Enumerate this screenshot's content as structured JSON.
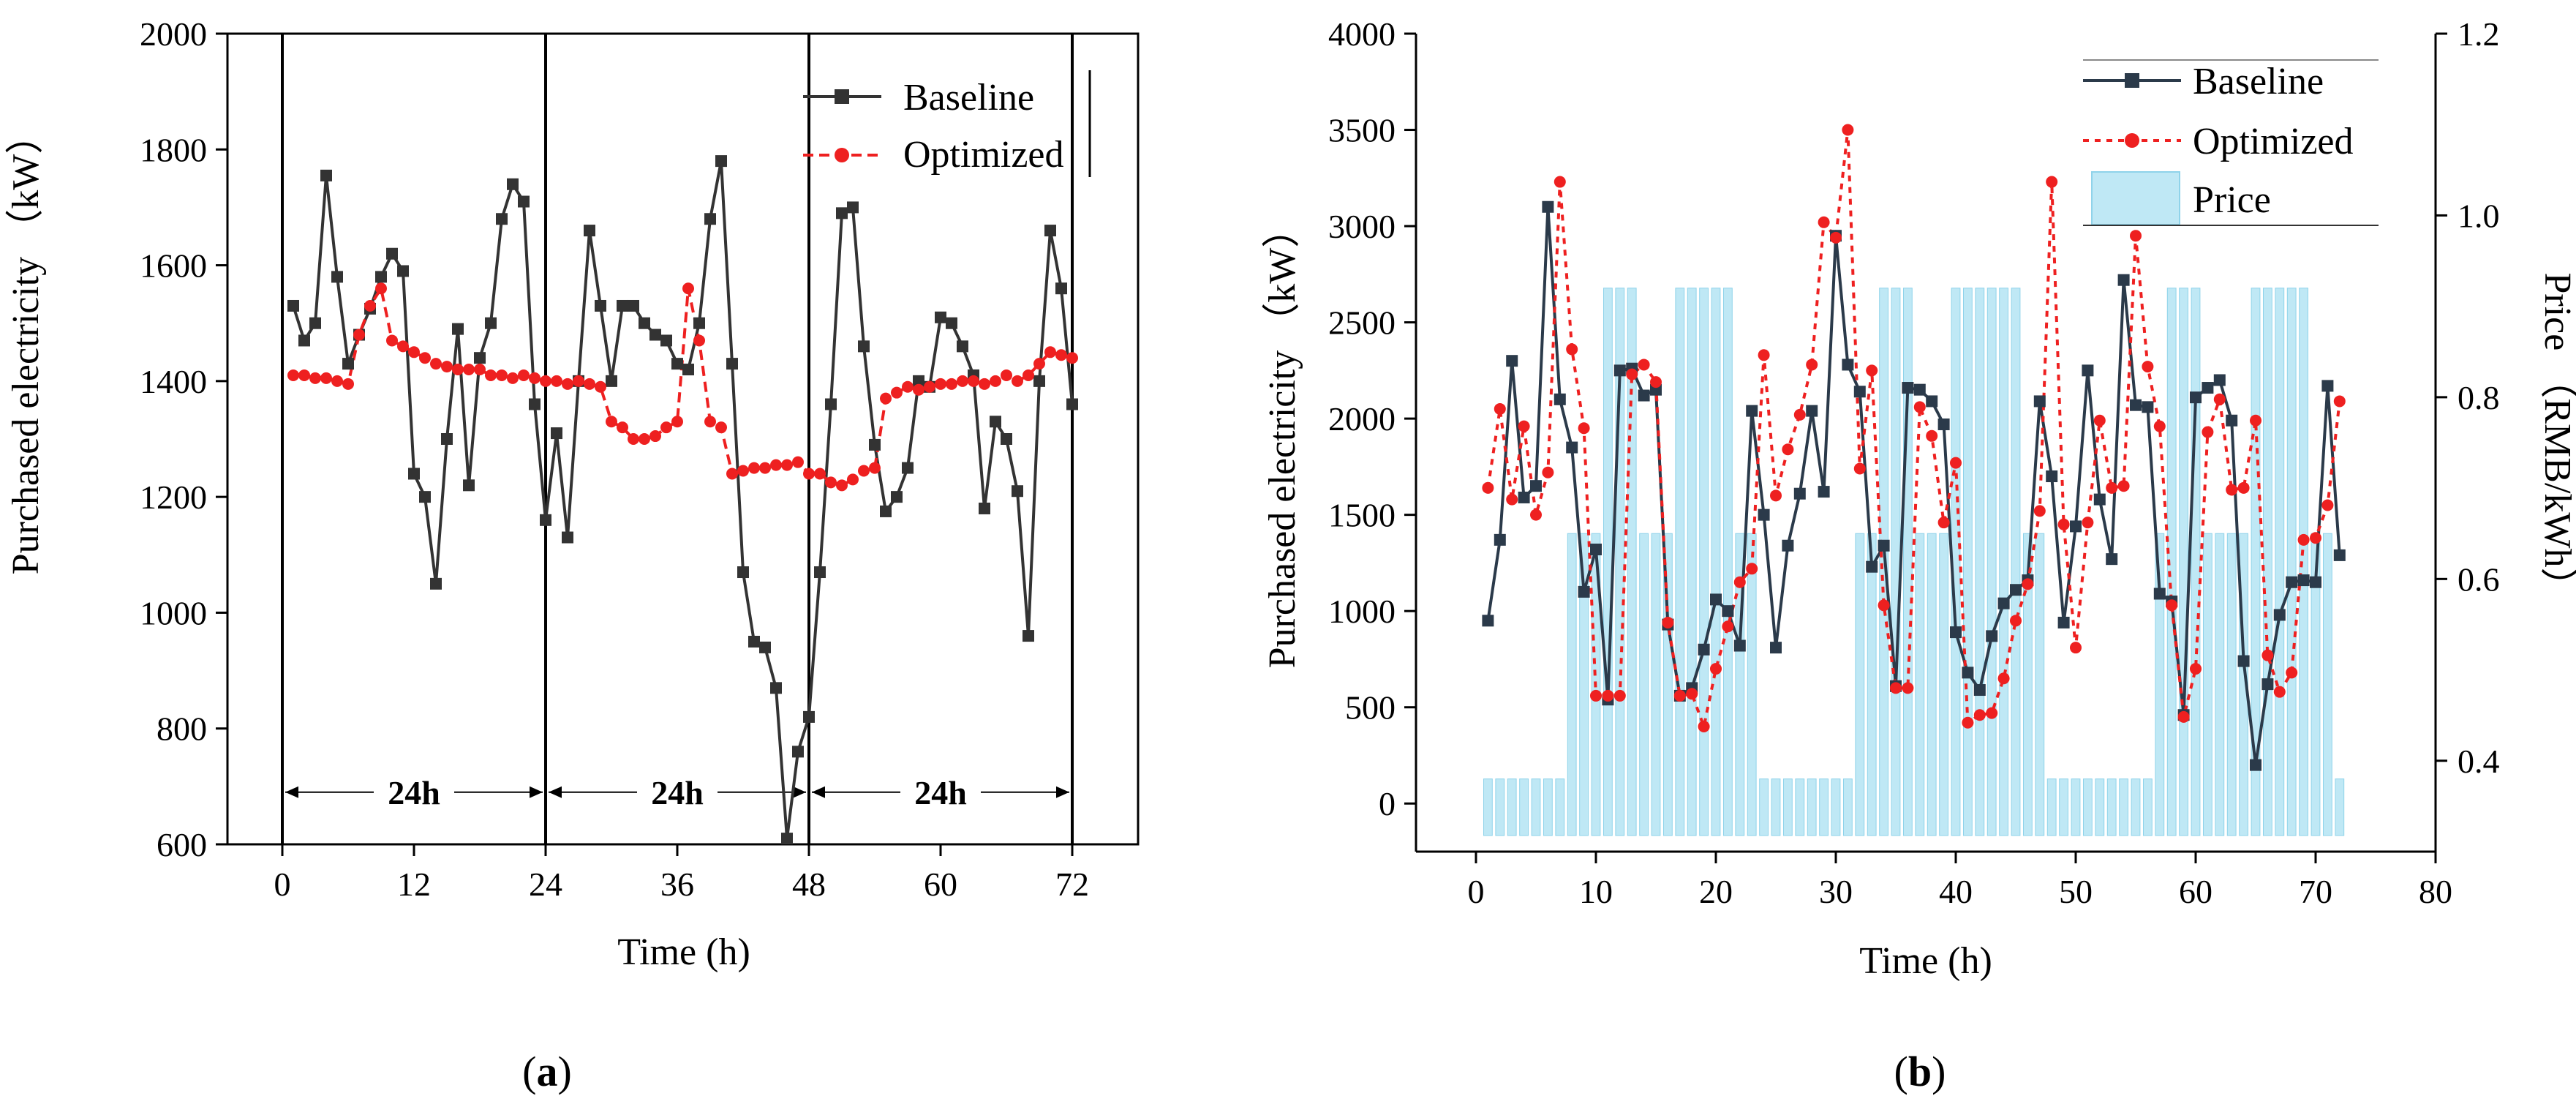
{
  "panels": [
    {
      "label_open": "(",
      "label_letter": "a",
      "label_close": ")"
    },
    {
      "label_open": "(",
      "label_letter": "b",
      "label_close": ")"
    }
  ],
  "chart_data": [
    {
      "type": "line",
      "title": "",
      "xlabel": "Time (h)",
      "ylabel": "Purchased electricity （kW）",
      "xlim": [
        -5,
        78
      ],
      "ylim": [
        600,
        2000
      ],
      "xticks": [
        0,
        12,
        24,
        36,
        48,
        60,
        72
      ],
      "yticks": [
        600,
        800,
        1000,
        1200,
        1400,
        1600,
        1800,
        2000
      ],
      "colors": {
        "baseline": "#333333",
        "optimized": "#ee2020"
      },
      "day_dividers": [
        0,
        24,
        48,
        72
      ],
      "day_labels": [
        {
          "from": 0,
          "to": 24,
          "text": "24h"
        },
        {
          "from": 24,
          "to": 48,
          "text": "24h"
        },
        {
          "from": 48,
          "to": 72,
          "text": "24h"
        }
      ],
      "x": [
        1,
        2,
        3,
        4,
        5,
        6,
        7,
        8,
        9,
        10,
        11,
        12,
        13,
        14,
        15,
        16,
        17,
        18,
        19,
        20,
        21,
        22,
        23,
        24,
        25,
        26,
        27,
        28,
        29,
        30,
        31,
        32,
        33,
        34,
        35,
        36,
        37,
        38,
        39,
        40,
        41,
        42,
        43,
        44,
        45,
        46,
        47,
        48,
        49,
        50,
        51,
        52,
        53,
        54,
        55,
        56,
        57,
        58,
        59,
        60,
        61,
        62,
        63,
        64,
        65,
        66,
        67,
        68,
        69,
        70,
        71,
        72
      ],
      "series": [
        {
          "name": "Baseline",
          "values": [
            1530,
            1470,
            1500,
            1755,
            1580,
            1430,
            1480,
            1525,
            1580,
            1620,
            1590,
            1240,
            1200,
            1050,
            1300,
            1490,
            1220,
            1440,
            1500,
            1680,
            1740,
            1710,
            1360,
            1160,
            1310,
            1130,
            1400,
            1660,
            1530,
            1400,
            1530,
            1530,
            1500,
            1480,
            1470,
            1430,
            1420,
            1500,
            1680,
            1780,
            1430,
            1070,
            950,
            940,
            870,
            610,
            760,
            820,
            1070,
            1360,
            1690,
            1700,
            1460,
            1290,
            1175,
            1200,
            1250,
            1400,
            1390,
            1510,
            1500,
            1460,
            1410,
            1180,
            1330,
            1300,
            1210,
            960,
            1400,
            1660,
            1560,
            1360
          ]
        },
        {
          "name": "Optimized",
          "values": [
            1410,
            1410,
            1405,
            1405,
            1400,
            1395,
            1480,
            1530,
            1560,
            1470,
            1460,
            1450,
            1440,
            1430,
            1425,
            1420,
            1420,
            1420,
            1410,
            1410,
            1405,
            1410,
            1405,
            1400,
            1400,
            1395,
            1400,
            1395,
            1390,
            1330,
            1320,
            1300,
            1300,
            1305,
            1320,
            1330,
            1560,
            1470,
            1330,
            1320,
            1240,
            1245,
            1250,
            1250,
            1255,
            1255,
            1260,
            1240,
            1240,
            1225,
            1220,
            1230,
            1245,
            1250,
            1370,
            1380,
            1390,
            1385,
            1390,
            1395,
            1395,
            1400,
            1400,
            1395,
            1400,
            1410,
            1400,
            1410,
            1430,
            1450,
            1445,
            1440
          ]
        }
      ],
      "legend": {
        "position": "top-right",
        "entries": [
          "Baseline",
          "Optimized"
        ]
      }
    },
    {
      "type": "line",
      "title": "",
      "xlabel": "Time (h)",
      "ylabel": "Purchased electricity （kW）",
      "y2label": "Price （RMB/kWh）",
      "xlim": [
        -5,
        80
      ],
      "ylim": [
        -250,
        4000
      ],
      "y2lim": [
        0.3,
        1.2
      ],
      "xticks": [
        0,
        10,
        20,
        30,
        40,
        50,
        60,
        70,
        80
      ],
      "yticks": [
        0,
        500,
        1000,
        1500,
        2000,
        2500,
        3000,
        3500,
        4000
      ],
      "y2ticks": [
        0.4,
        0.6,
        0.8,
        1.0,
        1.2
      ],
      "colors": {
        "baseline": "#2b3a4a",
        "optimized": "#ee2020",
        "price_fill": "#bfe8f5",
        "price_edge": "#8fd3ea"
      },
      "x": [
        1,
        2,
        3,
        4,
        5,
        6,
        7,
        8,
        9,
        10,
        11,
        12,
        13,
        14,
        15,
        16,
        17,
        18,
        19,
        20,
        21,
        22,
        23,
        24,
        25,
        26,
        27,
        28,
        29,
        30,
        31,
        32,
        33,
        34,
        35,
        36,
        37,
        38,
        39,
        40,
        41,
        42,
        43,
        44,
        45,
        46,
        47,
        48,
        49,
        50,
        51,
        52,
        53,
        54,
        55,
        56,
        57,
        58,
        59,
        60,
        61,
        62,
        63,
        64,
        65,
        66,
        67,
        68,
        69,
        70,
        71,
        72
      ],
      "series": [
        {
          "name": "Baseline",
          "values": [
            950,
            1370,
            2300,
            1590,
            1650,
            3100,
            2100,
            1850,
            1100,
            1320,
            540,
            2250,
            2260,
            2120,
            2150,
            930,
            560,
            600,
            800,
            1060,
            1000,
            820,
            2040,
            1500,
            810,
            1340,
            1610,
            2040,
            1620,
            2950,
            2280,
            2140,
            1230,
            1340,
            610,
            2160,
            2150,
            2090,
            1970,
            890,
            680,
            590,
            870,
            1040,
            1110,
            1160,
            2090,
            1700,
            940,
            1440,
            2250,
            1580,
            1270,
            2720,
            2070,
            2060,
            1090,
            1050,
            460,
            2110,
            2160,
            2200,
            1990,
            740,
            200,
            620,
            980,
            1150,
            1160,
            1150,
            2170,
            1290
          ]
        },
        {
          "name": "Optimized",
          "values": [
            1640,
            2050,
            1580,
            1960,
            1500,
            1720,
            3230,
            2360,
            1950,
            560,
            560,
            560,
            2230,
            2280,
            2190,
            940,
            560,
            570,
            400,
            700,
            920,
            1150,
            1220,
            2330,
            1600,
            1840,
            2020,
            2280,
            3020,
            2940,
            3500,
            1740,
            2250,
            1030,
            600,
            600,
            2060,
            1910,
            1460,
            1770,
            420,
            460,
            470,
            650,
            950,
            1140,
            1520,
            3230,
            1450,
            810,
            1460,
            1990,
            1640,
            1650,
            2950,
            2270,
            1960,
            1030,
            450,
            700,
            1930,
            2100,
            1630,
            1640,
            1990,
            770,
            580,
            680,
            1370,
            1380,
            1550,
            2090
          ]
        },
        {
          "name": "Price",
          "kind": "bar",
          "axis": "right",
          "values": [
            0.38,
            0.38,
            0.38,
            0.38,
            0.38,
            0.38,
            0.38,
            0.65,
            0.65,
            0.65,
            0.92,
            0.92,
            0.92,
            0.65,
            0.65,
            0.65,
            0.92,
            0.92,
            0.92,
            0.92,
            0.92,
            0.65,
            0.65,
            0.38,
            0.38,
            0.38,
            0.38,
            0.38,
            0.38,
            0.38,
            0.38,
            0.65,
            0.65,
            0.92,
            0.92,
            0.92,
            0.65,
            0.65,
            0.65,
            0.92,
            0.92,
            0.92,
            0.92,
            0.92,
            0.92,
            0.65,
            0.65,
            0.38,
            0.38,
            0.38,
            0.38,
            0.38,
            0.38,
            0.38,
            0.38,
            0.38,
            0.65,
            0.92,
            0.92,
            0.92,
            0.65,
            0.65,
            0.65,
            0.65,
            0.92,
            0.92,
            0.92,
            0.92,
            0.92,
            0.65,
            0.65,
            0.38
          ]
        }
      ],
      "legend": {
        "position": "top-right",
        "entries": [
          "Baseline",
          "Optimized",
          "Price"
        ]
      }
    }
  ]
}
